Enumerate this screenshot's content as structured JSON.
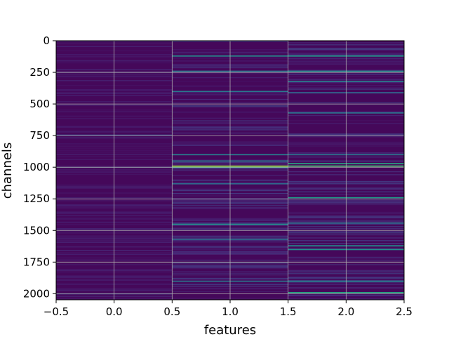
{
  "chart_data": {
    "type": "heatmap",
    "title": "",
    "xlabel": "features",
    "ylabel": "channels",
    "xlim": [
      -0.5,
      2.5
    ],
    "ylim": [
      2048,
      0
    ],
    "y_inverted": true,
    "grid": true,
    "grid_color": "#b0b0b0",
    "colormap": "viridis",
    "x_ticks": [
      -0.5,
      0.0,
      0.5,
      1.0,
      1.5,
      2.0,
      2.5
    ],
    "x_tick_labels": [
      "−0.5",
      "0.0",
      "0.5",
      "1.0",
      "1.5",
      "2.0",
      "2.5"
    ],
    "y_ticks": [
      0,
      250,
      500,
      750,
      1000,
      1250,
      1500,
      1750,
      2000
    ],
    "y_tick_labels": [
      "0",
      "250",
      "500",
      "750",
      "1000",
      "1250",
      "1500",
      "1750",
      "2000"
    ],
    "features": [
      0,
      1,
      2
    ],
    "n_channels": 2048,
    "background_level": 0.02,
    "highlights": [
      {
        "feature": 0,
        "channel": 745,
        "value": 0.2
      },
      {
        "feature": 0,
        "channel": 1000,
        "value": 0.15
      },
      {
        "feature": 0,
        "channel": 2000,
        "value": 0.2
      },
      {
        "feature": 1,
        "channel": 120,
        "value": 0.5
      },
      {
        "feature": 1,
        "channel": 240,
        "value": 0.4
      },
      {
        "feature": 1,
        "channel": 400,
        "value": 0.4
      },
      {
        "feature": 1,
        "channel": 900,
        "value": 0.45
      },
      {
        "feature": 1,
        "channel": 950,
        "value": 0.4
      },
      {
        "feature": 1,
        "channel": 990,
        "value": 0.85
      },
      {
        "feature": 1,
        "channel": 1000,
        "value": 0.6
      },
      {
        "feature": 1,
        "channel": 1130,
        "value": 0.35
      },
      {
        "feature": 1,
        "channel": 1450,
        "value": 0.5
      },
      {
        "feature": 1,
        "channel": 1570,
        "value": 0.35
      },
      {
        "feature": 1,
        "channel": 1900,
        "value": 0.4
      },
      {
        "feature": 2,
        "channel": 120,
        "value": 0.55
      },
      {
        "feature": 2,
        "channel": 240,
        "value": 0.5
      },
      {
        "feature": 2,
        "channel": 320,
        "value": 0.45
      },
      {
        "feature": 2,
        "channel": 410,
        "value": 0.35
      },
      {
        "feature": 2,
        "channel": 570,
        "value": 0.4
      },
      {
        "feature": 2,
        "channel": 900,
        "value": 0.4
      },
      {
        "feature": 2,
        "channel": 970,
        "value": 0.6
      },
      {
        "feature": 2,
        "channel": 990,
        "value": 0.7
      },
      {
        "feature": 2,
        "channel": 1240,
        "value": 0.55
      },
      {
        "feature": 2,
        "channel": 1440,
        "value": 0.4
      },
      {
        "feature": 2,
        "channel": 1620,
        "value": 0.5
      },
      {
        "feature": 2,
        "channel": 1650,
        "value": 0.5
      },
      {
        "feature": 2,
        "channel": 1900,
        "value": 0.45
      },
      {
        "feature": 2,
        "channel": 1990,
        "value": 0.6
      }
    ]
  }
}
